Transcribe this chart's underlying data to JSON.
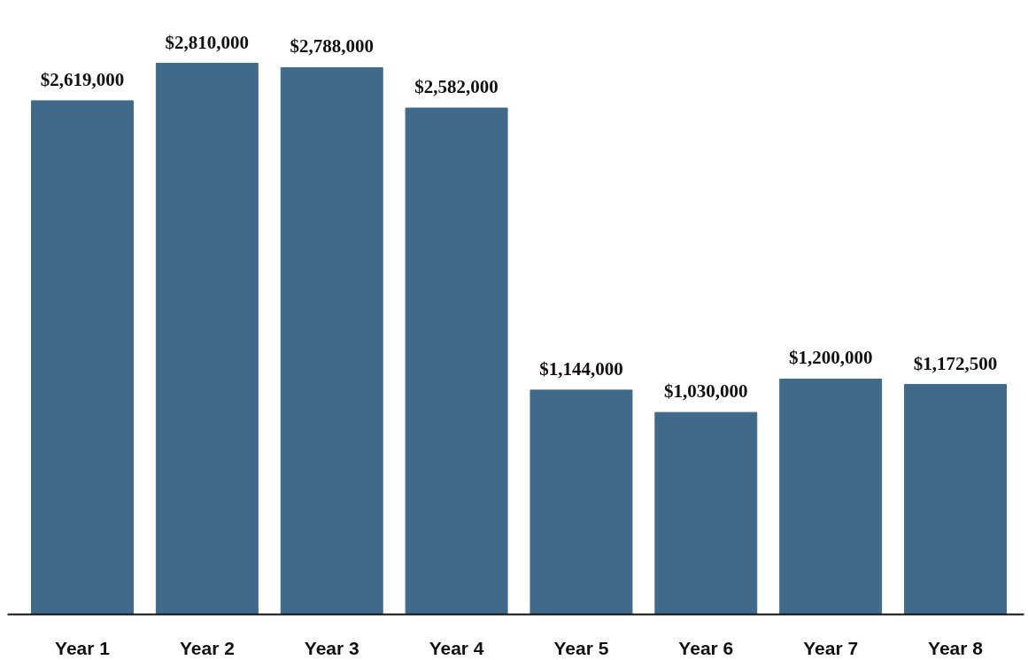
{
  "chart_data": {
    "type": "bar",
    "categories": [
      "Year 1",
      "Year 2",
      "Year 3",
      "Year 4",
      "Year 5",
      "Year 6",
      "Year 7",
      "Year 8"
    ],
    "values": [
      2619000,
      2810000,
      2788000,
      2582000,
      1144000,
      1030000,
      1200000,
      1172500
    ],
    "value_labels": [
      "$2,619,000",
      "$2,810,000",
      "$2,788,000",
      "$2,582,000",
      "$1,144,000",
      "$1,030,000",
      "$1,200,000",
      "$1,172,500"
    ],
    "color": "#416a8a",
    "grid": false
  }
}
